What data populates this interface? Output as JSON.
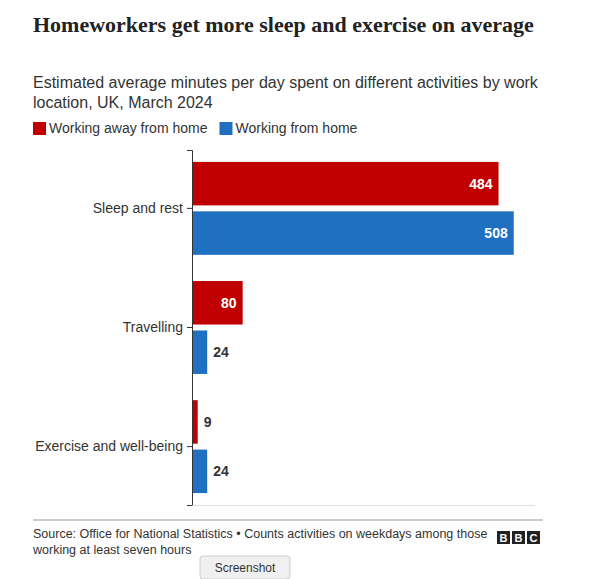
{
  "chart_data": {
    "type": "bar",
    "orientation": "horizontal",
    "title": "Homeworkers get more sleep and exercise on average",
    "subtitle": "Estimated average minutes per day spent on different activities by work location, UK, March 2024",
    "categories": [
      "Sleep and rest",
      "Travelling",
      "Exercise and well-being"
    ],
    "series": [
      {
        "name": "Working away from home",
        "color": "#c00000",
        "values": [
          484,
          80,
          9
        ]
      },
      {
        "name": "Working from home",
        "color": "#1f70c1",
        "values": [
          508,
          24,
          24
        ]
      }
    ],
    "xlim": [
      0,
      540
    ],
    "xticks": [],
    "data_labels": true,
    "tick_labels": "y",
    "legend": "top-left",
    "grid": false,
    "source": "Source: Office for National Statistics • Counts activities on weekdays among those working at least seven hours",
    "logo": "BBC",
    "button": "Screenshot"
  }
}
